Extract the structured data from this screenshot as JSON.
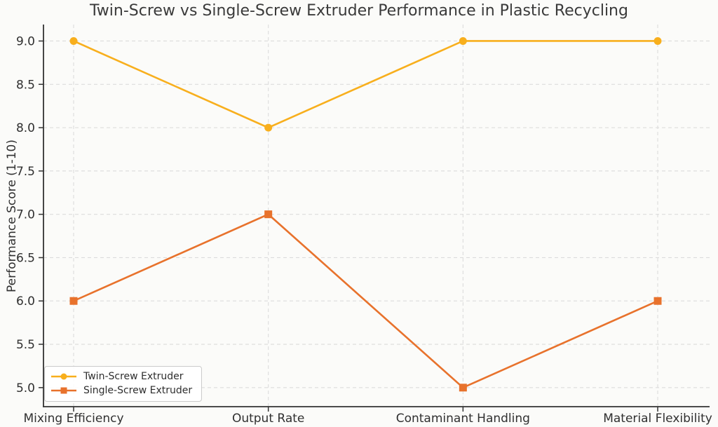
{
  "chart_data": {
    "type": "line",
    "title": "Twin-Screw vs Single-Screw Extruder Performance in Plastic Recycling",
    "categories": [
      "Mixing Efficiency",
      "Output Rate",
      "Contaminant Handling",
      "Material Flexibility"
    ],
    "series": [
      {
        "name": "Twin-Screw Extruder",
        "values": [
          9,
          8,
          9,
          9
        ],
        "color": "#F8AF1D",
        "marker": "circle"
      },
      {
        "name": "Single-Screw Extruder",
        "values": [
          6,
          7,
          5,
          6
        ],
        "color": "#E8722C",
        "marker": "square"
      }
    ],
    "xlabel": "",
    "ylabel": "Performance Score (1-10)",
    "yticks": [
      5.0,
      5.5,
      6.0,
      6.5,
      7.0,
      7.5,
      8.0,
      8.5,
      9.0
    ],
    "ytick_labels": [
      "5.0",
      "5.5",
      "6.0",
      "6.5",
      "7.0",
      "7.5",
      "8.0",
      "8.5",
      "9.0"
    ],
    "ylim": [
      4.78,
      9.19
    ],
    "grid": true,
    "grid_style": "dashed",
    "legend_position": "lower-left",
    "colors": {
      "grid": "#dcdcdc",
      "axis": "#333333",
      "text": "#303030",
      "title": "#3a3a3a",
      "background": "#fbfbf9"
    }
  }
}
